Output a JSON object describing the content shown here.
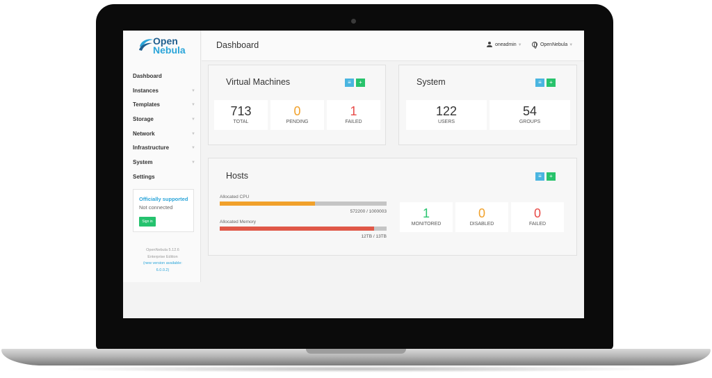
{
  "app": {
    "logo_line1": "Open",
    "logo_line2": "Nebula",
    "page_title": "Dashboard",
    "user": "oneadmin",
    "zone": "OpenNebula"
  },
  "sidebar": {
    "items": [
      {
        "label": "Dashboard",
        "has_submenu": false
      },
      {
        "label": "Instances",
        "has_submenu": true
      },
      {
        "label": "Templates",
        "has_submenu": true
      },
      {
        "label": "Storage",
        "has_submenu": true
      },
      {
        "label": "Network",
        "has_submenu": true
      },
      {
        "label": "Infrastructure",
        "has_submenu": true
      },
      {
        "label": "System",
        "has_submenu": true
      },
      {
        "label": "Settings",
        "has_submenu": false
      }
    ],
    "support": {
      "title": "Officially supported",
      "status": "Not connected",
      "signin_label": "Sign in"
    },
    "version": {
      "line1": "OpenNebula 5.12.6",
      "line2": "Enterprise Edition",
      "line3": "(new version available:",
      "line4": "6.0.0.2)"
    }
  },
  "vm_panel": {
    "title": "Virtual Machines",
    "stats": [
      {
        "value": "713",
        "label": "TOTAL",
        "color": "#333333"
      },
      {
        "value": "0",
        "label": "PENDING",
        "color": "#f1a12b"
      },
      {
        "value": "1",
        "label": "FAILED",
        "color": "#e84b48"
      }
    ]
  },
  "system_panel": {
    "title": "System",
    "stats": [
      {
        "value": "122",
        "label": "USERS"
      },
      {
        "value": "54",
        "label": "GROUPS"
      }
    ]
  },
  "hosts_panel": {
    "title": "Hosts",
    "cpu": {
      "label": "Allocated CPU",
      "value_text": "572200 / 1000003",
      "fraction": 0.572,
      "color": "#f1a12b"
    },
    "memory": {
      "label": "Allocated Memory",
      "value_text": "12TB / 13TB",
      "fraction": 0.923,
      "color": "#e05848"
    },
    "stats": [
      {
        "value": "1",
        "label": "MONITORED",
        "color": "#29c46f"
      },
      {
        "value": "0",
        "label": "DISABLED",
        "color": "#f1a12b"
      },
      {
        "value": "0",
        "label": "FAILED",
        "color": "#e84b48"
      }
    ]
  },
  "icons": {
    "list": "list-icon",
    "add": "plus-icon",
    "user": "user-icon",
    "zone": "globe-icon",
    "chevron": "chevron-down-icon"
  }
}
